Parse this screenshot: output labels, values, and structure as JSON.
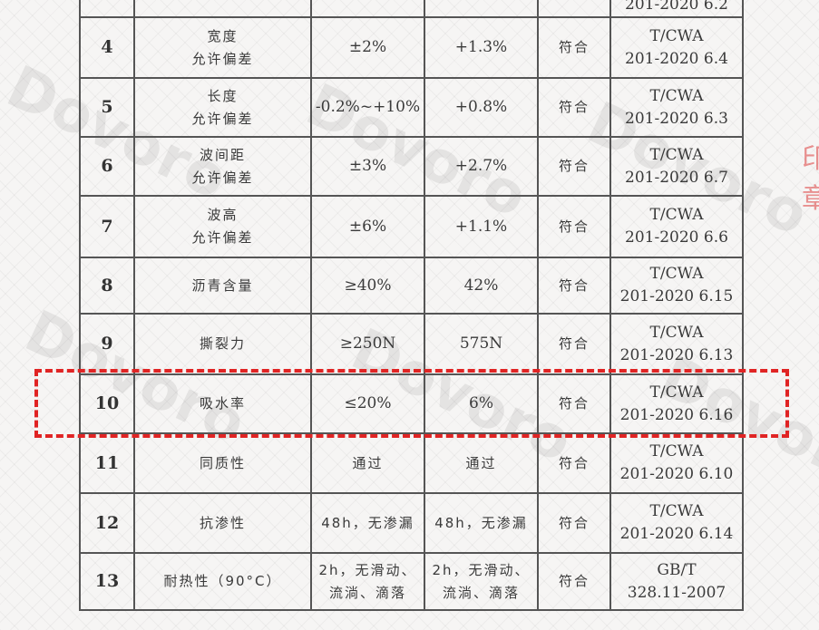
{
  "rows": [
    {
      "no": "",
      "item": "",
      "requirement": "",
      "result": "",
      "verdict": "",
      "method": "201-2020 6.2"
    },
    {
      "no": "4",
      "item": "宽度\n允许偏差",
      "requirement": "±2%",
      "result": "+1.3%",
      "verdict": "符合",
      "method": "T/CWA\n201-2020 6.4"
    },
    {
      "no": "5",
      "item": "长度\n允许偏差",
      "requirement": "-0.2%~+10%",
      "result": "+0.8%",
      "verdict": "符合",
      "method": "T/CWA\n201-2020 6.3"
    },
    {
      "no": "6",
      "item": "波间距\n允许偏差",
      "requirement": "±3%",
      "result": "+2.7%",
      "verdict": "符合",
      "method": "T/CWA\n201-2020 6.7"
    },
    {
      "no": "7",
      "item": "波高\n允许偏差",
      "requirement": "±6%",
      "result": "+1.1%",
      "verdict": "符合",
      "method": "T/CWA\n201-2020 6.6"
    },
    {
      "no": "8",
      "item": "沥青含量",
      "requirement": "≥40%",
      "result": "42%",
      "verdict": "符合",
      "method": "T/CWA\n201-2020 6.15"
    },
    {
      "no": "9",
      "item": "撕裂力",
      "requirement": "≥250N",
      "result": "575N",
      "verdict": "符合",
      "method": "T/CWA\n201-2020 6.13"
    },
    {
      "no": "10",
      "item": "吸水率",
      "requirement": "≤20%",
      "result": "6%",
      "verdict": "符合",
      "method": "T/CWA\n201-2020 6.16"
    },
    {
      "no": "11",
      "item": "同质性",
      "requirement": "通过",
      "result": "通过",
      "verdict": "符合",
      "method": "T/CWA\n201-2020 6.10"
    },
    {
      "no": "12",
      "item": "抗渗性",
      "requirement": "48h，无渗漏",
      "result": "48h，无渗漏",
      "verdict": "符合",
      "method": "T/CWA\n201-2020 6.14"
    },
    {
      "no": "13",
      "item": "耐热性（90°C）",
      "requirement": "2h，无滑动、\n流淌、滴落",
      "result": "2h，无滑动、\n流淌、滴落",
      "verdict": "符合",
      "method": "GB/T\n328.11-2007"
    }
  ],
  "watermark": "Dovoro",
  "highlight_color": "#e02424"
}
